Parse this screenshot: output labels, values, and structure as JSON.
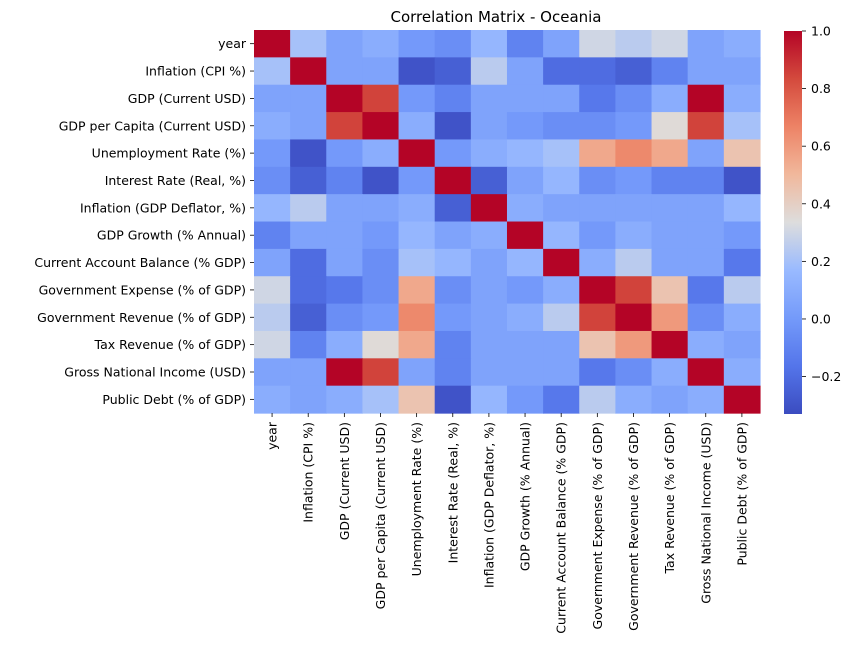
{
  "chart_data": {
    "type": "heatmap",
    "title": "Correlation Matrix - Oceania",
    "labels": [
      "year",
      "Inflation (CPI %)",
      "GDP (Current USD)",
      "GDP per Capita (Current USD)",
      "Unemployment Rate (%)",
      "Interest Rate (Real, %)",
      "Inflation (GDP Deflator, %)",
      "GDP Growth (% Annual)",
      "Current Account Balance (% GDP)",
      "Government Expense (% of GDP)",
      "Government Revenue (% of GDP)",
      "Tax Revenue (% of GDP)",
      "Gross National Income (USD)",
      "Public Debt (% of GDP)"
    ],
    "values": [
      [
        1.0,
        0.2,
        0.05,
        0.1,
        0.0,
        -0.05,
        0.15,
        -0.1,
        0.05,
        0.3,
        0.25,
        0.3,
        0.05,
        0.1
      ],
      [
        0.2,
        1.0,
        0.05,
        0.05,
        -0.3,
        -0.25,
        0.25,
        0.05,
        -0.2,
        -0.2,
        -0.25,
        -0.1,
        0.05,
        0.05
      ],
      [
        0.05,
        0.05,
        1.0,
        0.85,
        0.0,
        -0.1,
        0.05,
        0.05,
        0.05,
        -0.15,
        -0.05,
        0.1,
        1.0,
        0.1
      ],
      [
        0.1,
        0.05,
        0.85,
        1.0,
        0.1,
        -0.3,
        0.05,
        0.0,
        -0.05,
        -0.05,
        0.0,
        0.35,
        0.85,
        0.2
      ],
      [
        0.0,
        -0.3,
        0.0,
        0.1,
        1.0,
        0.0,
        0.1,
        0.15,
        0.2,
        0.55,
        0.65,
        0.55,
        0.05,
        0.45
      ],
      [
        -0.05,
        -0.25,
        -0.1,
        -0.3,
        0.0,
        1.0,
        -0.25,
        0.05,
        0.15,
        -0.05,
        0.0,
        -0.1,
        -0.1,
        -0.3
      ],
      [
        0.15,
        0.25,
        0.05,
        0.05,
        0.1,
        -0.25,
        1.0,
        0.1,
        0.05,
        0.05,
        0.05,
        0.05,
        0.05,
        0.15
      ],
      [
        -0.1,
        0.05,
        0.05,
        0.0,
        0.15,
        0.05,
        0.1,
        1.0,
        0.15,
        0.0,
        0.1,
        0.05,
        0.05,
        0.0
      ],
      [
        0.05,
        -0.2,
        0.05,
        -0.05,
        0.2,
        0.15,
        0.05,
        0.15,
        1.0,
        0.1,
        0.25,
        0.05,
        0.05,
        -0.15
      ],
      [
        0.3,
        -0.2,
        -0.15,
        -0.05,
        0.55,
        -0.05,
        0.05,
        0.0,
        0.1,
        1.0,
        0.85,
        0.45,
        -0.15,
        0.25
      ],
      [
        0.25,
        -0.25,
        -0.05,
        0.0,
        0.65,
        0.0,
        0.05,
        0.1,
        0.25,
        0.85,
        1.0,
        0.6,
        -0.05,
        0.1
      ],
      [
        0.3,
        -0.1,
        0.1,
        0.35,
        0.55,
        -0.1,
        0.05,
        0.05,
        0.05,
        0.45,
        0.6,
        1.0,
        0.1,
        0.05
      ],
      [
        0.05,
        0.05,
        1.0,
        0.85,
        0.05,
        -0.1,
        0.05,
        0.05,
        0.05,
        -0.15,
        -0.05,
        0.1,
        1.0,
        0.1
      ],
      [
        0.1,
        0.05,
        0.1,
        0.2,
        0.45,
        -0.3,
        0.15,
        0.0,
        -0.15,
        0.25,
        0.1,
        0.05,
        0.1,
        1.0
      ]
    ],
    "vmin": -0.33,
    "vmax": 1.0,
    "colormap": "coolwarm",
    "colorbar_ticks": [
      "1.0",
      "0.8",
      "0.6",
      "0.4",
      "0.2",
      "0.0",
      "−0.2"
    ],
    "colorbar_tick_values": [
      1.0,
      0.8,
      0.6,
      0.4,
      0.2,
      0.0,
      -0.2
    ],
    "grid": false,
    "legend": "colorbar-right"
  }
}
